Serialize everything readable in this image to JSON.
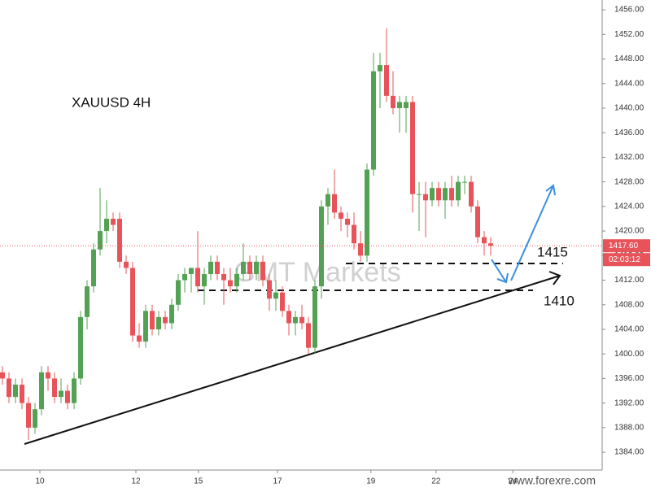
{
  "chart_data": {
    "type": "candlestick",
    "title": "XAUUSD 4H",
    "watermark": "GMT Markets",
    "footer": "www.forexre.com",
    "annotations": [
      "1415",
      "1410"
    ],
    "up_color": "#53a253",
    "down_color": "#e8535a",
    "xlim": [
      -0.375,
      92.125
    ],
    "ylim": [
      1381.1,
      1457.6
    ],
    "grid": false,
    "xticks": [
      {
        "value": 5.75,
        "label": "10"
      },
      {
        "value": 20.5,
        "label": "12"
      },
      {
        "value": 30.1,
        "label": "15"
      },
      {
        "value": 42.25,
        "label": "17"
      },
      {
        "value": 56.6,
        "label": "19"
      },
      {
        "value": 66.6,
        "label": "22"
      },
      {
        "value": 78.4,
        "label": "24"
      }
    ],
    "yticks": [
      {
        "value": 1384,
        "label": "1384.00"
      },
      {
        "value": 1388,
        "label": "1388.00"
      },
      {
        "value": 1392,
        "label": "1392.00"
      },
      {
        "value": 1396,
        "label": "1396.00"
      },
      {
        "value": 1400,
        "label": "1400.00"
      },
      {
        "value": 1404,
        "label": "1404.00"
      },
      {
        "value": 1408,
        "label": "1408.00"
      },
      {
        "value": 1412,
        "label": "1412.00"
      },
      {
        "value": 1416,
        "label": "1416.00"
      },
      {
        "value": 1420,
        "label": "1420.00"
      },
      {
        "value": 1424,
        "label": "1424.00"
      },
      {
        "value": 1428,
        "label": "1428.00"
      },
      {
        "value": 1432,
        "label": "1432.00"
      },
      {
        "value": 1436,
        "label": "1436.00"
      },
      {
        "value": 1440,
        "label": "1440.00"
      },
      {
        "value": 1444,
        "label": "1444.00"
      },
      {
        "value": 1448,
        "label": "1448.00"
      },
      {
        "value": 1452,
        "label": "1452.00"
      },
      {
        "value": 1456,
        "label": "1456.00"
      }
    ],
    "current_price": {
      "value": 1417.6,
      "label": "1417.60"
    },
    "countdown": "02:03:12",
    "open": [
      1397,
      1396,
      1393,
      1395,
      1392,
      1388,
      1391,
      1397,
      1396,
      1393,
      1394,
      1392,
      1396,
      1406,
      1411,
      1417,
      1420,
      1422,
      1422,
      1415,
      1414,
      1403,
      1402,
      1407,
      1404,
      1406,
      1405,
      1408,
      1412,
      1413,
      1414,
      1411,
      1413,
      1415,
      1413,
      1412,
      1411,
      1413,
      1415,
      1413,
      1415,
      1412,
      1409,
      1410,
      1407,
      1405,
      1406,
      1405,
      1401,
      1411,
      1424,
      1426,
      1423,
      1422,
      1421,
      1418,
      1416,
      1430,
      1446,
      1447,
      1442,
      1440,
      1440,
      1441,
      1426,
      1426,
      1425,
      1427,
      1425,
      1427,
      1425,
      1428,
      1428,
      1424,
      1419,
      1418
    ],
    "high": [
      1398,
      1397,
      1396,
      1396,
      1393,
      1392,
      1398,
      1398,
      1397,
      1396,
      1395,
      1397,
      1407,
      1412,
      1418,
      1427,
      1425,
      1423,
      1423,
      1416,
      1415,
      1405,
      1408,
      1408,
      1407,
      1407,
      1409,
      1413,
      1414,
      1414,
      1420,
      1414,
      1416,
      1416,
      1414,
      1414,
      1414,
      1418,
      1416,
      1416,
      1416,
      1413,
      1412,
      1411,
      1408,
      1407,
      1408,
      1406,
      1412,
      1425,
      1427,
      1430,
      1424,
      1423,
      1423,
      1420,
      1431,
      1449,
      1449,
      1453,
      1446,
      1442,
      1442,
      1442,
      1428,
      1428,
      1428,
      1428,
      1428,
      1429,
      1429,
      1429,
      1429,
      1425,
      1420,
      1419
    ],
    "low": [
      1395,
      1392,
      1392,
      1391,
      1386,
      1387,
      1390,
      1394,
      1392,
      1392,
      1391,
      1391,
      1395,
      1404,
      1410,
      1416,
      1418,
      1420,
      1414,
      1413,
      1402,
      1401,
      1401,
      1403,
      1403,
      1404,
      1404,
      1407,
      1410,
      1410,
      1410,
      1408,
      1412,
      1412,
      1408,
      1410,
      1410,
      1412,
      1412,
      1412,
      1411,
      1407,
      1407,
      1406,
      1403,
      1403,
      1404,
      1400,
      1400,
      1409,
      1421,
      1422,
      1420,
      1419,
      1417,
      1415,
      1415,
      1429,
      1440,
      1441,
      1439,
      1436,
      1436,
      1423,
      1420,
      1419,
      1424,
      1424,
      1422,
      1424,
      1424,
      1426,
      1423,
      1418,
      1416,
      1416
    ],
    "close": [
      1396,
      1393,
      1395,
      1392,
      1388,
      1391,
      1397,
      1396,
      1393,
      1394,
      1392,
      1396,
      1406,
      1411,
      1417,
      1420,
      1422,
      1421,
      1415,
      1414,
      1403,
      1402,
      1407,
      1404,
      1406,
      1405,
      1408,
      1412,
      1413,
      1414,
      1411,
      1413,
      1415,
      1413,
      1412,
      1411,
      1413,
      1415,
      1413,
      1415,
      1412,
      1409,
      1410,
      1407,
      1405,
      1406,
      1405,
      1401,
      1411,
      1424,
      1426,
      1423,
      1422,
      1421,
      1418,
      1416,
      1430,
      1446,
      1447,
      1442,
      1440,
      1441,
      1441,
      1426,
      1426,
      1425,
      1427,
      1425,
      1427,
      1425,
      1428,
      1428,
      1424,
      1419,
      1418,
      1417.6
    ]
  }
}
